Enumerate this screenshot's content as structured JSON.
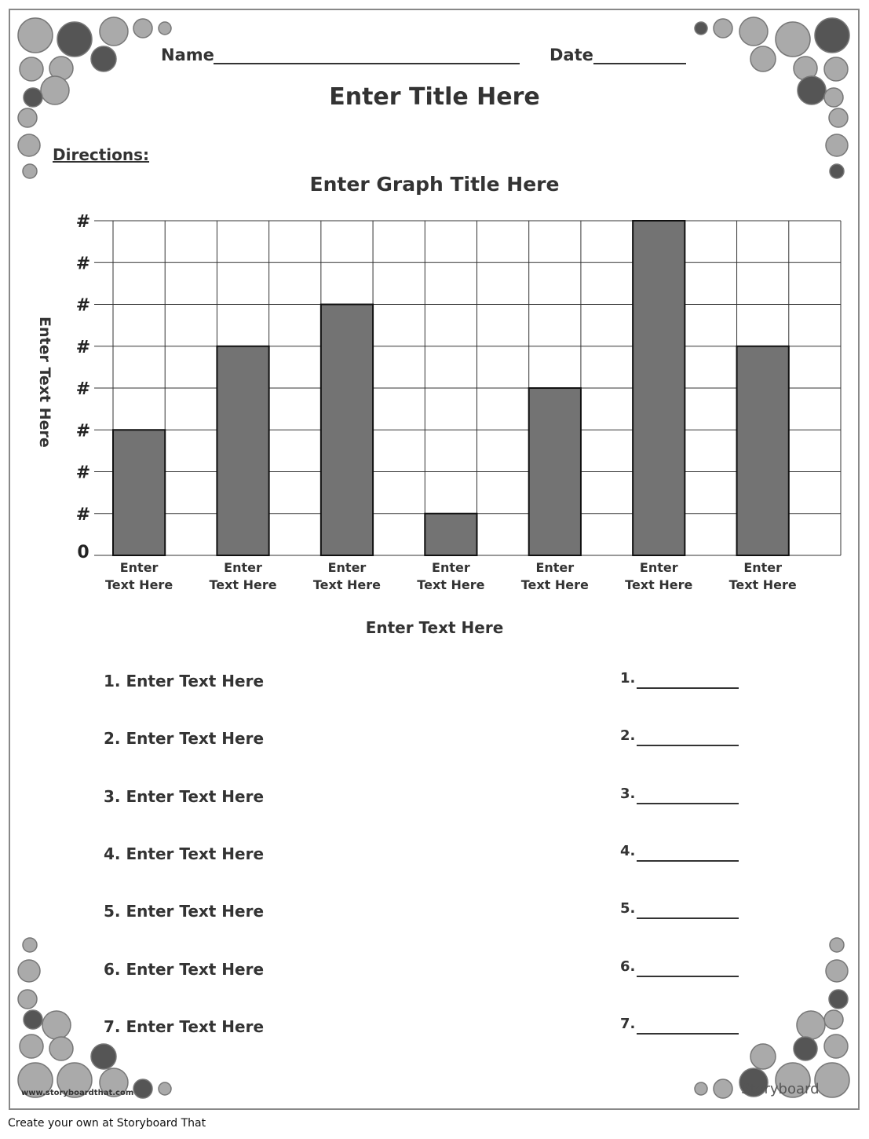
{
  "header": {
    "name_label": "Name",
    "date_label": "Date",
    "title": "Enter Title Here",
    "directions": "Directions:"
  },
  "chart_data": {
    "type": "bar",
    "title": "Enter Graph Title Here",
    "y_label": "Enter Text Here",
    "x_label": "Enter Text Here",
    "categories": [
      "Enter Text Here",
      "Enter Text Here",
      "Enter Text Here",
      "Enter Text Here",
      "Enter Text Here",
      "Enter Text Here",
      "Enter Text Here"
    ],
    "values": [
      3,
      5,
      6,
      1,
      4,
      8,
      5
    ],
    "color": "#737373",
    "ylim": [
      0,
      8
    ],
    "yticks": [
      0,
      {
        "value": 1,
        "label": "#"
      },
      {
        "value": 2,
        "label": "#"
      },
      {
        "value": 3,
        "label": "#"
      },
      {
        "value": 4,
        "label": "#"
      },
      {
        "value": 5,
        "label": "#"
      },
      {
        "value": 6,
        "label": "#"
      },
      {
        "value": 7,
        "label": "#"
      },
      {
        "value": 8,
        "label": "#"
      }
    ],
    "grid": true
  },
  "questions": [
    {
      "text": "1. Enter Text Here",
      "answer_label": "1."
    },
    {
      "text": "2. Enter Text Here",
      "answer_label": "2."
    },
    {
      "text": "3. Enter Text Here",
      "answer_label": "3."
    },
    {
      "text": "4. Enter Text Here",
      "answer_label": "4."
    },
    {
      "text": "5. Enter Text Here",
      "answer_label": "5."
    },
    {
      "text": "6. Enter Text Here",
      "answer_label": "6."
    },
    {
      "text": "7. Enter Text Here",
      "answer_label": "7."
    }
  ],
  "footer": {
    "website": "www.storyboardthat.com",
    "logo": "Storyboard",
    "credit": "Create your own at Storyboard That"
  }
}
